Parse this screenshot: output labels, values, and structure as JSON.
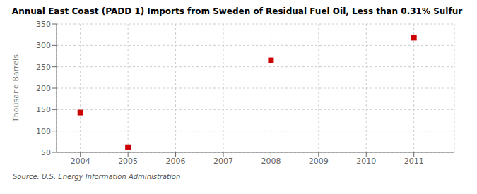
{
  "chart_data": {
    "type": "scatter",
    "title": "Annual East Coast (PADD 1) Imports from Sweden of Residual Fuel Oil, Less than 0.31% Sulfur",
    "ylabel": "Thousand Barrels",
    "source": "Source: U.S. Energy Information Administration",
    "x": [
      2004,
      2005,
      2008,
      2011
    ],
    "values": [
      143,
      62,
      265,
      318
    ],
    "xlim": [
      2003.5,
      2011.85
    ],
    "ylim": [
      50,
      350
    ],
    "xticks": [
      2004,
      2005,
      2006,
      2007,
      2008,
      2009,
      2010,
      2011
    ],
    "yticks": [
      50,
      100,
      150,
      200,
      250,
      300,
      350
    ],
    "color": "#cc0000",
    "marker": "square",
    "grid": true
  }
}
